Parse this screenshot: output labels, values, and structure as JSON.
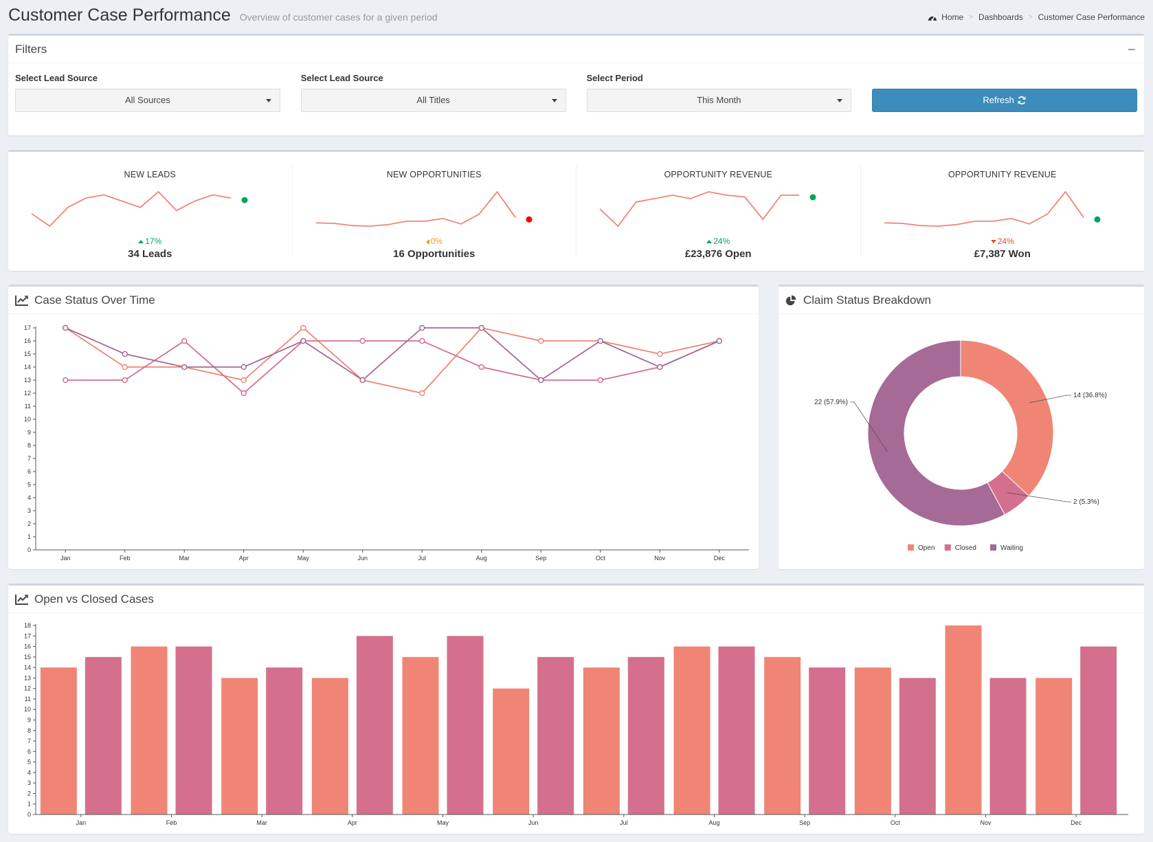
{
  "header": {
    "title": "Customer Case Performance",
    "subtitle": "Overview of customer cases for a given period",
    "breadcrumb": [
      "Home",
      "Dashboards",
      "Customer Case Performance"
    ]
  },
  "filters": {
    "title": "Filters",
    "fields": [
      {
        "label": "Select Lead Source",
        "value": "All Sources"
      },
      {
        "label": "Select Lead Source",
        "value": "All Titles"
      },
      {
        "label": "Select Period",
        "value": "This Month"
      }
    ],
    "refresh_label": "Refresh"
  },
  "colors": {
    "open": "#f08575",
    "closed": "#d4708d",
    "waiting": "#a56a96",
    "up": "#00a65a",
    "down": "#dd4b39",
    "flat": "#f39c12"
  },
  "kpis": [
    {
      "title": "NEW LEADS",
      "delta": "17%",
      "direction": "up",
      "value": "34 Leads",
      "spark": [
        8,
        4,
        10,
        13,
        14,
        12,
        10,
        15,
        9,
        12,
        14,
        13
      ],
      "dot_color": "#00a65a"
    },
    {
      "title": "NEW OPPORTUNITIES",
      "delta": "0%",
      "direction": "flat",
      "value": "16 Opportunities",
      "spark": [
        5,
        4.9,
        4.5,
        4.4,
        4.7,
        5.3,
        5.3,
        5.8,
        4.8,
        6.6,
        10.7,
        6
      ],
      "dot_color": "#ff0000"
    },
    {
      "title": "OPPORTUNITY REVENUE",
      "delta": "24%",
      "direction": "up",
      "value": "£23,876 Open",
      "spark": [
        9,
        4,
        11,
        12,
        13,
        12,
        14,
        13,
        12.5,
        6,
        13,
        13
      ],
      "dot_color": "#00a65a"
    },
    {
      "title": "OPPORTUNITY REVENUE",
      "delta": "24%",
      "direction": "down",
      "value": "£7,387 Won",
      "spark": [
        5,
        4.9,
        4.5,
        4.4,
        4.7,
        5.3,
        5.3,
        5.8,
        4.8,
        6.6,
        10.7,
        6
      ],
      "dot_color": "#00a65a"
    }
  ],
  "case_status": {
    "title": "Case Status Over Time",
    "chart_data": {
      "type": "line",
      "categories": [
        "Jan",
        "Feb",
        "Mar",
        "Apr",
        "May",
        "Jun",
        "Jul",
        "Aug",
        "Sep",
        "Oct",
        "Nov",
        "Dec"
      ],
      "ylim": [
        0,
        17
      ],
      "yticks": [
        0,
        1,
        2,
        3,
        4,
        5,
        6,
        7,
        8,
        9,
        10,
        11,
        12,
        13,
        14,
        15,
        16,
        17
      ],
      "series": [
        {
          "values": [
            17,
            14,
            14,
            13,
            17,
            13,
            12,
            17,
            16,
            16,
            15,
            16
          ],
          "color": "#f08575"
        },
        {
          "values": [
            13,
            13,
            16,
            12,
            16,
            16,
            16,
            14,
            13,
            13,
            14,
            16
          ],
          "color": "#d4708d"
        },
        {
          "values": [
            17,
            15,
            14,
            14,
            16,
            13,
            17,
            17,
            13,
            16,
            14,
            16
          ],
          "color": "#a56a96"
        }
      ]
    }
  },
  "claim_status": {
    "title": "Claim Status Breakdown",
    "chart_data": {
      "type": "pie",
      "labels": [
        "Open",
        "Closed",
        "Waiting"
      ],
      "values": [
        14,
        2,
        22
      ],
      "data_labels": [
        "14 (36.8%)",
        "2 (5.3%)",
        "22 (57.9%)"
      ],
      "colors": [
        "#f08575",
        "#d4708d",
        "#a56a96"
      ],
      "legend_position": "bottom"
    }
  },
  "open_closed": {
    "title": "Open vs Closed Cases",
    "chart_data": {
      "type": "bar",
      "categories": [
        "Jan",
        "Feb",
        "Mar",
        "Apr",
        "May",
        "Jun",
        "Jul",
        "Aug",
        "Sep",
        "Oct",
        "Nov",
        "Dec"
      ],
      "ylim": [
        0,
        18
      ],
      "yticks": [
        0,
        1,
        2,
        3,
        4,
        5,
        6,
        7,
        8,
        9,
        10,
        11,
        12,
        13,
        14,
        15,
        16,
        17,
        18
      ],
      "series": [
        {
          "values": [
            14,
            16,
            13,
            13,
            15,
            12,
            14,
            16,
            15,
            14,
            18,
            13
          ],
          "color": "#f08575"
        },
        {
          "values": [
            15,
            16,
            14,
            17,
            17,
            15,
            15,
            16,
            14,
            13,
            13,
            16
          ],
          "color": "#d4708d"
        }
      ]
    }
  }
}
